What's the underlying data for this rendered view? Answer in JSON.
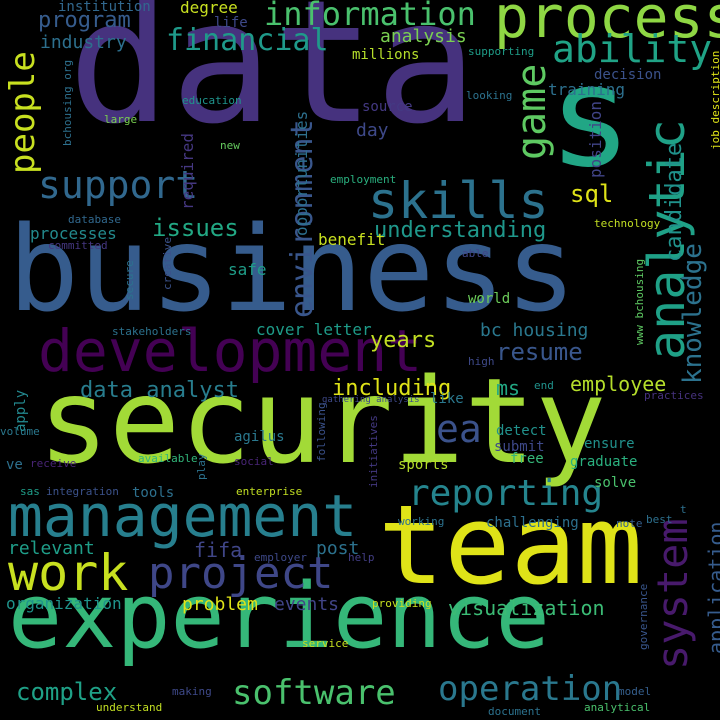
{
  "words": [
    {
      "text": "data",
      "color": "#46327e"
    },
    {
      "text": "business",
      "color": "#365c8d"
    },
    {
      "text": "security",
      "color": "#a2da37"
    },
    {
      "text": "team",
      "color": "#dfe318"
    },
    {
      "text": "experience",
      "color": "#35b779"
    },
    {
      "text": "management",
      "color": "#277f8e"
    },
    {
      "text": "development",
      "color": "#440154"
    },
    {
      "text": "s",
      "color": "#21a685"
    },
    {
      "text": "process",
      "color": "#8fd744"
    },
    {
      "text": "analytic",
      "color": "#1fa187"
    },
    {
      "text": "skills",
      "color": "#2c728e"
    },
    {
      "text": "work",
      "color": "#c8e020"
    },
    {
      "text": "project",
      "color": "#3f4788"
    },
    {
      "text": "support",
      "color": "#31688e"
    },
    {
      "text": "people",
      "color": "#c8e020"
    },
    {
      "text": "game",
      "color": "#5ec962"
    },
    {
      "text": "ability",
      "color": "#20a386"
    },
    {
      "text": "information",
      "color": "#4ac16d"
    },
    {
      "text": "financial",
      "color": "#1f9a8a"
    },
    {
      "text": "environment",
      "color": "#39568c"
    },
    {
      "text": "system",
      "color": "#481a6c"
    },
    {
      "text": "reporting",
      "color": "#25858e"
    },
    {
      "text": "software",
      "color": "#4ac16d"
    },
    {
      "text": "operation",
      "color": "#2a788e"
    },
    {
      "text": "resume",
      "color": "#39568c"
    },
    {
      "text": "ea",
      "color": "#3b528b"
    },
    {
      "text": "knowledge",
      "color": "#2c728e"
    },
    {
      "text": "candidate",
      "color": "#20928c"
    },
    {
      "text": "sql",
      "color": "#dfe318"
    },
    {
      "text": "issues",
      "color": "#22a884"
    },
    {
      "text": "understanding",
      "color": "#1f988b"
    },
    {
      "text": "years",
      "color": "#c2df23"
    },
    {
      "text": "day",
      "color": "#3e4989"
    },
    {
      "text": "program",
      "color": "#365c8d"
    },
    {
      "text": "industry",
      "color": "#2d708e"
    },
    {
      "text": "analysis",
      "color": "#7ad151"
    },
    {
      "text": "data analyst",
      "color": "#287d8e"
    },
    {
      "text": "including",
      "color": "#dfe318"
    },
    {
      "text": "employee",
      "color": "#b5de2b"
    },
    {
      "text": "ms",
      "color": "#22a884"
    },
    {
      "text": "visualization",
      "color": "#3bbb75"
    },
    {
      "text": "application",
      "color": "#365c8d"
    },
    {
      "text": "complex",
      "color": "#1fa187"
    },
    {
      "text": "relevant",
      "color": "#1f9e89"
    },
    {
      "text": "fifa",
      "color": "#404688"
    },
    {
      "text": "post",
      "color": "#2c728e"
    },
    {
      "text": "events",
      "color": "#414487"
    },
    {
      "text": "problem",
      "color": "#dfe318"
    },
    {
      "text": "organization",
      "color": "#1f948c"
    },
    {
      "text": "bc housing",
      "color": "#2a788e"
    },
    {
      "text": "cover letter",
      "color": "#1e9c89"
    },
    {
      "text": "benefit",
      "color": "#c8e020"
    },
    {
      "text": "processes",
      "color": "#238a8d"
    },
    {
      "text": "degree",
      "color": "#c8e020"
    },
    {
      "text": "institution",
      "color": "#31688e"
    },
    {
      "text": "life",
      "color": "#3e4989"
    },
    {
      "text": "millions",
      "color": "#b5de2b"
    },
    {
      "text": "supporting",
      "color": "#1f9e89"
    },
    {
      "text": "training",
      "color": "#2d708e"
    },
    {
      "text": "decision",
      "color": "#3b528b"
    },
    {
      "text": "looking",
      "color": "#2c728e"
    },
    {
      "text": "education",
      "color": "#1f948c"
    },
    {
      "text": "position",
      "color": "#414487"
    },
    {
      "text": "source",
      "color": "#443983"
    },
    {
      "text": "required",
      "color": "#453781"
    },
    {
      "text": "opportunities",
      "color": "#2d708e"
    },
    {
      "text": "large",
      "color": "#7ad151"
    },
    {
      "text": "new",
      "color": "#65cb5e"
    },
    {
      "text": "employment",
      "color": "#2ab07f"
    },
    {
      "text": "database",
      "color": "#31688e"
    },
    {
      "text": "committed",
      "color": "#453781"
    },
    {
      "text": "technology",
      "color": "#c2df23"
    },
    {
      "text": "job description",
      "color": "#dfe318"
    },
    {
      "text": "www bchousing",
      "color": "#5ec962"
    },
    {
      "text": "able",
      "color": "#404688"
    },
    {
      "text": "secure",
      "color": "#2c728e"
    },
    {
      "text": "creative",
      "color": "#3b528b"
    },
    {
      "text": "safe",
      "color": "#1f9e89"
    },
    {
      "text": "world",
      "color": "#6ccd5a"
    },
    {
      "text": "stakeholders",
      "color": "#2c728e"
    },
    {
      "text": "high",
      "color": "#3e4989"
    },
    {
      "text": "end",
      "color": "#20928c"
    },
    {
      "text": "like",
      "color": "#2a788e"
    },
    {
      "text": "practices",
      "color": "#46327e"
    },
    {
      "text": "gathering analysis",
      "color": "#3e4989"
    },
    {
      "text": "agilus",
      "color": "#2a788e"
    },
    {
      "text": "available",
      "color": "#32b67a"
    },
    {
      "text": "play",
      "color": "#2c728e"
    },
    {
      "text": "following",
      "color": "#3b528b"
    },
    {
      "text": "initiatives",
      "color": "#443983"
    },
    {
      "text": "detect",
      "color": "#21918c"
    },
    {
      "text": "submit",
      "color": "#3e4989"
    },
    {
      "text": "free",
      "color": "#35b779"
    },
    {
      "text": "ensure",
      "color": "#21918c"
    },
    {
      "text": "graduate",
      "color": "#2ab07f"
    },
    {
      "text": "solve",
      "color": "#4ac16d"
    },
    {
      "text": "sports",
      "color": "#b5de2b"
    },
    {
      "text": "social",
      "color": "#482576"
    },
    {
      "text": "receive",
      "color": "#482475"
    },
    {
      "text": "volume",
      "color": "#2a788e"
    },
    {
      "text": "apply",
      "color": "#23888e"
    },
    {
      "text": "ve",
      "color": "#2d708e"
    },
    {
      "text": "sas",
      "color": "#1f9e89"
    },
    {
      "text": "integration",
      "color": "#3b528b"
    },
    {
      "text": "tools",
      "color": "#2d708e"
    },
    {
      "text": "enterprise",
      "color": "#c2df23"
    },
    {
      "text": "working",
      "color": "#2c728e"
    },
    {
      "text": "challenging",
      "color": "#2d708e"
    },
    {
      "text": "note",
      "color": "#355f8d"
    },
    {
      "text": "best",
      "color": "#2d708e"
    },
    {
      "text": "t",
      "color": "#2d708e"
    },
    {
      "text": "employer",
      "color": "#3e4989"
    },
    {
      "text": "help",
      "color": "#433e85"
    },
    {
      "text": "providing",
      "color": "#c8e020"
    },
    {
      "text": "governance",
      "color": "#39568c"
    },
    {
      "text": "service",
      "color": "#c8e020"
    },
    {
      "text": "making",
      "color": "#3e4989"
    },
    {
      "text": "understand",
      "color": "#c2df23"
    },
    {
      "text": "document",
      "color": "#2c728e"
    },
    {
      "text": "analytical",
      "color": "#4ac16d"
    },
    {
      "text": "model",
      "color": "#355f8d"
    },
    {
      "text": "bchousing org",
      "color": "#2d708e"
    }
  ]
}
